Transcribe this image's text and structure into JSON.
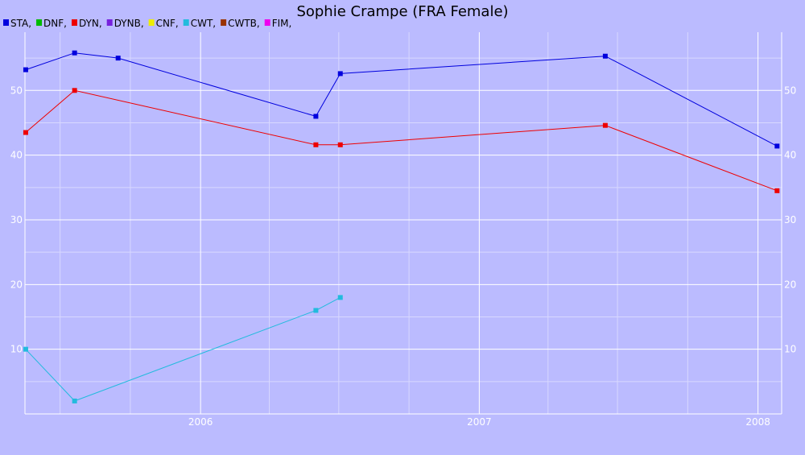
{
  "chart_data": {
    "type": "line",
    "title": "Sophie Crampe (FRA Female)",
    "xlabel": "",
    "ylabel": "",
    "x_tick_labels": [
      "2006",
      "2007",
      "2008"
    ],
    "y_ticks": [
      10,
      20,
      30,
      40,
      50
    ],
    "ylim": [
      0,
      59
    ],
    "xlim": [
      "2005-05-16",
      "2008-02-01"
    ],
    "grid": true,
    "legend": [
      {
        "label": "STA,",
        "color": "#0000dd"
      },
      {
        "label": "DNF,",
        "color": "#00bb00"
      },
      {
        "label": "DYN,",
        "color": "#ee0000"
      },
      {
        "label": "DYNB,",
        "color": "#7722dd"
      },
      {
        "label": "CNF,",
        "color": "#eeee00"
      },
      {
        "label": "CWT,",
        "color": "#22bbdd"
      },
      {
        "label": "CWTB,",
        "color": "#993300"
      },
      {
        "label": "FIM,",
        "color": "#ee00ee"
      }
    ],
    "series": [
      {
        "name": "STA",
        "color": "#0000dd",
        "points": [
          {
            "x": "2005-05-17",
            "y": 53.2
          },
          {
            "x": "2005-07-20",
            "y": 55.8
          },
          {
            "x": "2005-09-15",
            "y": 55.0
          },
          {
            "x": "2006-06-01",
            "y": 46.0
          },
          {
            "x": "2006-07-03",
            "y": 52.6
          },
          {
            "x": "2007-06-15",
            "y": 55.3
          },
          {
            "x": "2008-01-26",
            "y": 41.4
          }
        ]
      },
      {
        "name": "DYN",
        "color": "#ee0000",
        "points": [
          {
            "x": "2005-05-17",
            "y": 43.5
          },
          {
            "x": "2005-07-20",
            "y": 50.0
          },
          {
            "x": "2006-06-01",
            "y": 41.6
          },
          {
            "x": "2006-07-03",
            "y": 41.6
          },
          {
            "x": "2007-06-15",
            "y": 44.6
          },
          {
            "x": "2008-01-26",
            "y": 34.5
          }
        ]
      },
      {
        "name": "CWT",
        "color": "#22bbdd",
        "points": [
          {
            "x": "2005-05-17",
            "y": 10.0
          },
          {
            "x": "2005-07-20",
            "y": 2.0
          },
          {
            "x": "2006-06-01",
            "y": 16.0
          },
          {
            "x": "2006-07-03",
            "y": 18.0
          }
        ]
      }
    ]
  }
}
